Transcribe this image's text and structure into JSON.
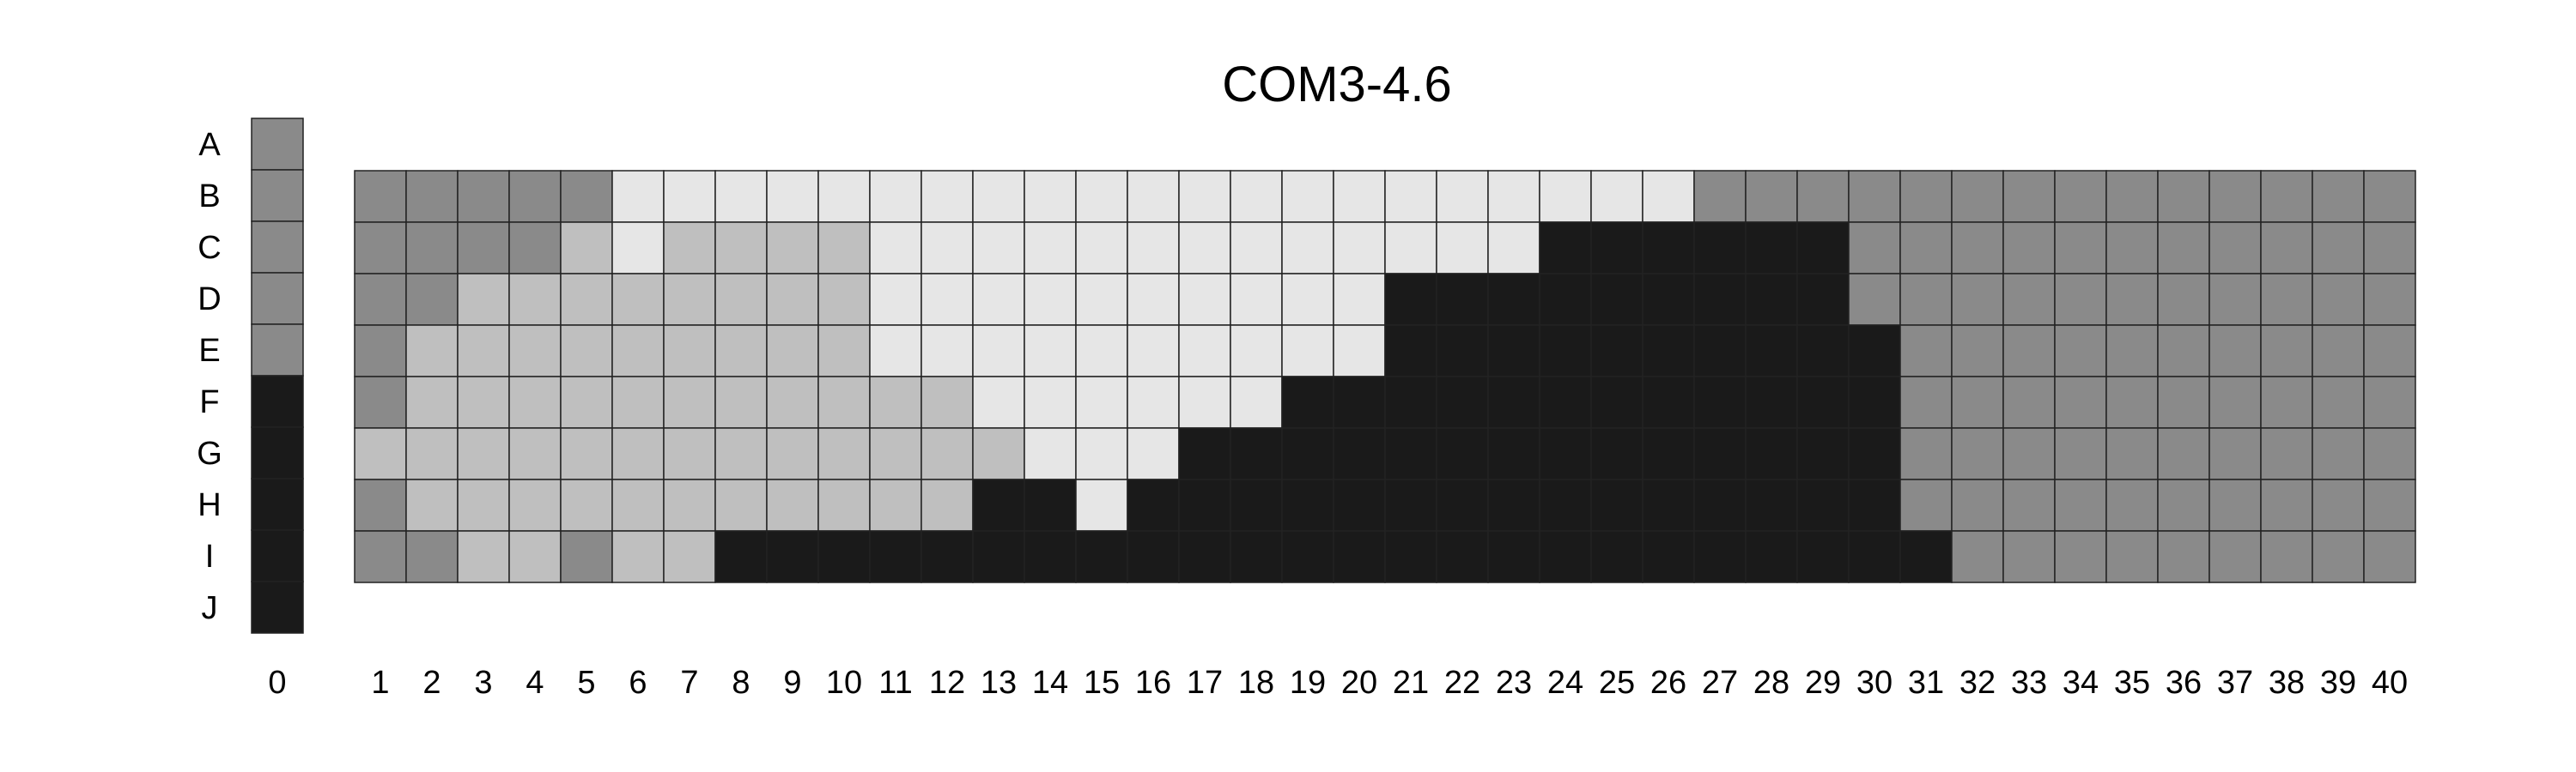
{
  "chart_data": {
    "type": "heatmap",
    "title": "COM3-4.6",
    "rows": [
      "A",
      "B",
      "C",
      "D",
      "E",
      "F",
      "G",
      "H",
      "I",
      "J"
    ],
    "control_column": {
      "label": "0",
      "values": [
        1,
        1,
        1,
        1,
        1,
        3,
        3,
        3,
        3,
        3
      ]
    },
    "columns": [
      "1",
      "2",
      "3",
      "4",
      "5",
      "6",
      "7",
      "8",
      "9",
      "10",
      "11",
      "12",
      "13",
      "14",
      "15",
      "16",
      "17",
      "18",
      "19",
      "20",
      "21",
      "22",
      "23",
      "24",
      "25",
      "26",
      "27",
      "28",
      "29",
      "30",
      "31",
      "32",
      "33",
      "34",
      "35",
      "36",
      "37",
      "38",
      "39",
      "40"
    ],
    "grid_rows": [
      "B",
      "C",
      "D",
      "E",
      "F",
      "G",
      "H",
      "I"
    ],
    "grid": [
      [
        1,
        1,
        1,
        1,
        1,
        4,
        4,
        4,
        4,
        4,
        4,
        4,
        4,
        4,
        4,
        4,
        4,
        4,
        4,
        4,
        4,
        4,
        4,
        4,
        4,
        4,
        1,
        1,
        1,
        1,
        1,
        1,
        1,
        1,
        1,
        1,
        1,
        1,
        1,
        1
      ],
      [
        1,
        1,
        1,
        1,
        2,
        4,
        2,
        2,
        2,
        2,
        4,
        4,
        4,
        4,
        4,
        4,
        4,
        4,
        4,
        4,
        4,
        4,
        4,
        3,
        3,
        3,
        3,
        3,
        3,
        1,
        1,
        1,
        1,
        1,
        1,
        1,
        1,
        1,
        1,
        1
      ],
      [
        1,
        1,
        2,
        2,
        2,
        2,
        2,
        2,
        2,
        2,
        4,
        4,
        4,
        4,
        4,
        4,
        4,
        4,
        4,
        4,
        3,
        3,
        3,
        3,
        3,
        3,
        3,
        3,
        3,
        1,
        1,
        1,
        1,
        1,
        1,
        1,
        1,
        1,
        1,
        1
      ],
      [
        1,
        2,
        2,
        2,
        2,
        2,
        2,
        2,
        2,
        2,
        4,
        4,
        4,
        4,
        4,
        4,
        4,
        4,
        4,
        4,
        3,
        3,
        3,
        3,
        3,
        3,
        3,
        3,
        3,
        3,
        1,
        1,
        1,
        1,
        1,
        1,
        1,
        1,
        1,
        1
      ],
      [
        1,
        2,
        2,
        2,
        2,
        2,
        2,
        2,
        2,
        2,
        2,
        2,
        4,
        4,
        4,
        4,
        4,
        4,
        3,
        3,
        3,
        3,
        3,
        3,
        3,
        3,
        3,
        3,
        3,
        3,
        1,
        1,
        1,
        1,
        1,
        1,
        1,
        1,
        1,
        1
      ],
      [
        2,
        2,
        2,
        2,
        2,
        2,
        2,
        2,
        2,
        2,
        2,
        2,
        2,
        4,
        4,
        4,
        3,
        3,
        3,
        3,
        3,
        3,
        3,
        3,
        3,
        3,
        3,
        3,
        3,
        3,
        1,
        1,
        1,
        1,
        1,
        1,
        1,
        1,
        1,
        1
      ],
      [
        1,
        2,
        2,
        2,
        2,
        2,
        2,
        2,
        2,
        2,
        2,
        2,
        3,
        3,
        4,
        3,
        3,
        3,
        3,
        3,
        3,
        3,
        3,
        3,
        3,
        3,
        3,
        3,
        3,
        3,
        1,
        1,
        1,
        1,
        1,
        1,
        1,
        1,
        1,
        1
      ],
      [
        1,
        1,
        2,
        2,
        1,
        2,
        2,
        3,
        3,
        3,
        3,
        3,
        3,
        3,
        3,
        3,
        3,
        3,
        3,
        3,
        3,
        3,
        3,
        3,
        3,
        3,
        3,
        3,
        3,
        3,
        3,
        1,
        1,
        1,
        1,
        1,
        1,
        1,
        1,
        1
      ]
    ],
    "colors": {
      "1": "#8a8a8a",
      "2": "#bfbfbf",
      "3": "#1a1a1a",
      "4": "#e6e6e6"
    },
    "grid_on": true
  }
}
